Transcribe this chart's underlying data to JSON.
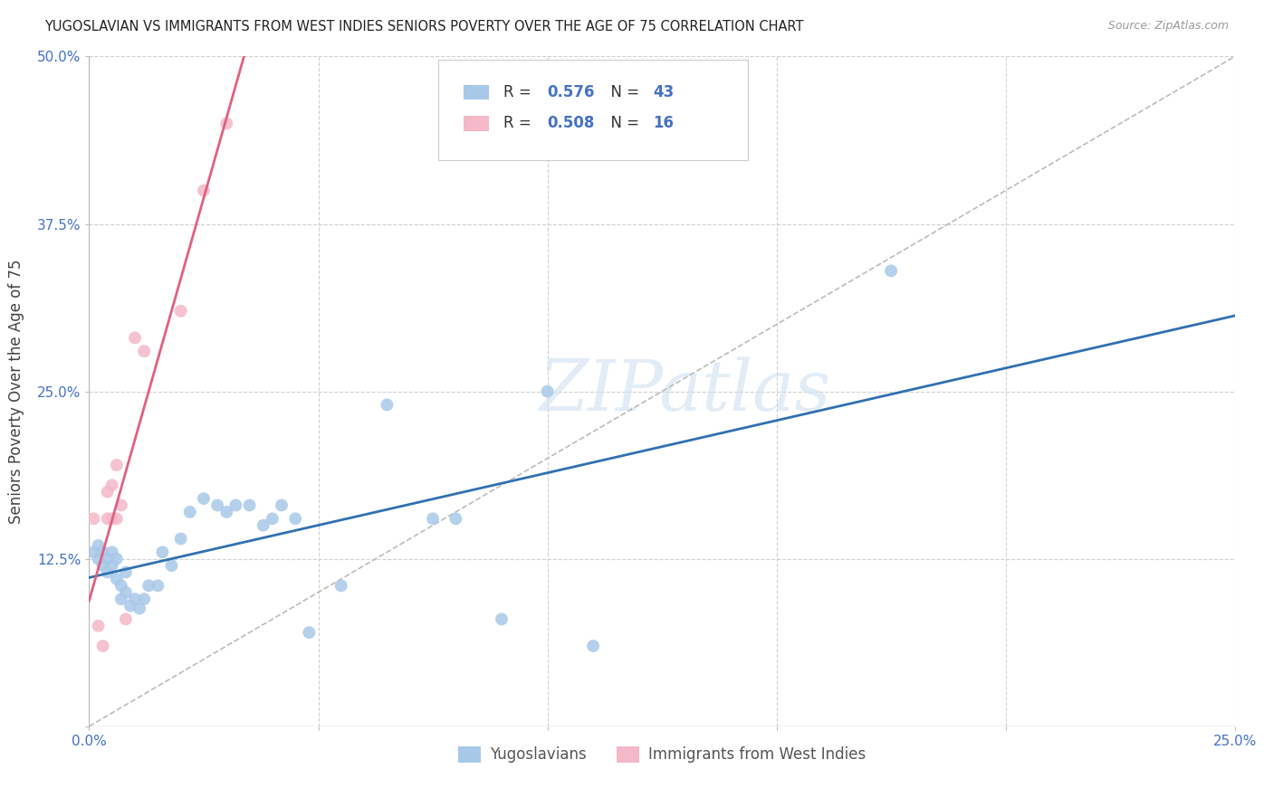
{
  "title": "YUGOSLAVIAN VS IMMIGRANTS FROM WEST INDIES SENIORS POVERTY OVER THE AGE OF 75 CORRELATION CHART",
  "source": "Source: ZipAtlas.com",
  "ylabel": "Seniors Poverty Over the Age of 75",
  "xlim": [
    0,
    0.25
  ],
  "ylim": [
    0,
    0.5
  ],
  "xticks": [
    0.0,
    0.05,
    0.1,
    0.15,
    0.2,
    0.25
  ],
  "yticks": [
    0.0,
    0.125,
    0.25,
    0.375,
    0.5
  ],
  "xticklabels": [
    "0.0%",
    "",
    "",
    "",
    "",
    "25.0%"
  ],
  "yticklabels": [
    "",
    "12.5%",
    "25.0%",
    "37.5%",
    "50.0%"
  ],
  "R_blue": 0.576,
  "N_blue": 43,
  "R_pink": 0.508,
  "N_pink": 16,
  "blue_scatter_color": "#a8c8e8",
  "pink_scatter_color": "#f4b8c8",
  "blue_line_color": "#3070b0",
  "pink_line_color": "#e06080",
  "legend_label_blue": "Yugoslavians",
  "legend_label_pink": "Immigrants from West Indies",
  "blue_x": [
    0.001,
    0.002,
    0.002,
    0.003,
    0.003,
    0.004,
    0.004,
    0.005,
    0.005,
    0.006,
    0.006,
    0.007,
    0.007,
    0.008,
    0.008,
    0.009,
    0.01,
    0.011,
    0.012,
    0.013,
    0.015,
    0.016,
    0.018,
    0.02,
    0.022,
    0.025,
    0.028,
    0.03,
    0.032,
    0.035,
    0.038,
    0.04,
    0.042,
    0.045,
    0.065,
    0.075,
    0.08,
    0.09,
    0.1,
    0.11,
    0.048,
    0.055,
    0.175
  ],
  "blue_y": [
    0.13,
    0.125,
    0.135,
    0.13,
    0.12,
    0.125,
    0.115,
    0.13,
    0.12,
    0.125,
    0.11,
    0.095,
    0.105,
    0.1,
    0.115,
    0.09,
    0.095,
    0.088,
    0.095,
    0.105,
    0.105,
    0.13,
    0.12,
    0.14,
    0.16,
    0.17,
    0.165,
    0.16,
    0.165,
    0.165,
    0.15,
    0.155,
    0.165,
    0.155,
    0.24,
    0.155,
    0.155,
    0.08,
    0.25,
    0.06,
    0.07,
    0.105,
    0.34
  ],
  "pink_x": [
    0.001,
    0.002,
    0.003,
    0.004,
    0.004,
    0.005,
    0.005,
    0.006,
    0.006,
    0.007,
    0.008,
    0.01,
    0.012,
    0.02,
    0.025,
    0.03
  ],
  "pink_y": [
    0.155,
    0.075,
    0.06,
    0.155,
    0.175,
    0.155,
    0.18,
    0.155,
    0.195,
    0.165,
    0.08,
    0.29,
    0.28,
    0.31,
    0.4,
    0.45
  ],
  "watermark": "ZIPatlas",
  "background_color": "#ffffff",
  "grid_color": "#d0d0d0"
}
